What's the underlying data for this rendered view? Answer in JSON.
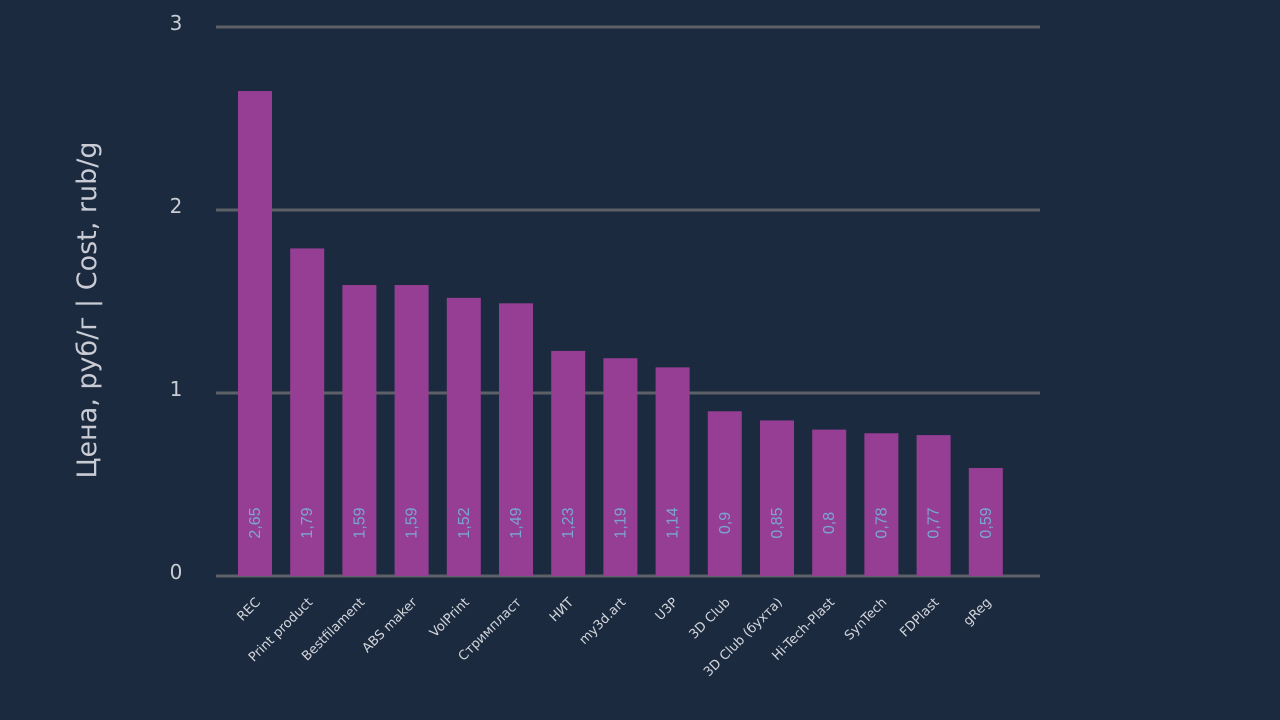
{
  "chart_data": {
    "type": "bar",
    "title": "",
    "xlabel": "",
    "ylabel": "Цена, руб/г | Cost, rub/g",
    "ylim": [
      0,
      3
    ],
    "yticks": [
      "0",
      "1",
      "2",
      "3"
    ],
    "grid": true,
    "categories": [
      "REC",
      "Print product",
      "Bestfilament",
      "ABS maker",
      "VolPrint",
      "Стримпласт",
      "НИТ",
      "my3d.art",
      "U3P",
      "3D Club",
      "3D Club (бухта)",
      "Hi-Tech-Plast",
      "SynTech",
      "FDPlast",
      "gReg"
    ],
    "values": [
      2.65,
      1.79,
      1.59,
      1.59,
      1.52,
      1.49,
      1.23,
      1.19,
      1.14,
      0.9,
      0.85,
      0.8,
      0.78,
      0.77,
      0.59
    ],
    "value_labels": [
      "2,65",
      "1,79",
      "1,59",
      "1,59",
      "1,52",
      "1,49",
      "1,23",
      "1,19",
      "1,14",
      "0,9",
      "0,85",
      "0,8",
      "0,78",
      "0,77",
      "0,59"
    ],
    "colors": {
      "background": "#1b2a3f",
      "bar": "#963e94",
      "grid": "#5d6066",
      "value_label": "#7aa6d6"
    }
  }
}
